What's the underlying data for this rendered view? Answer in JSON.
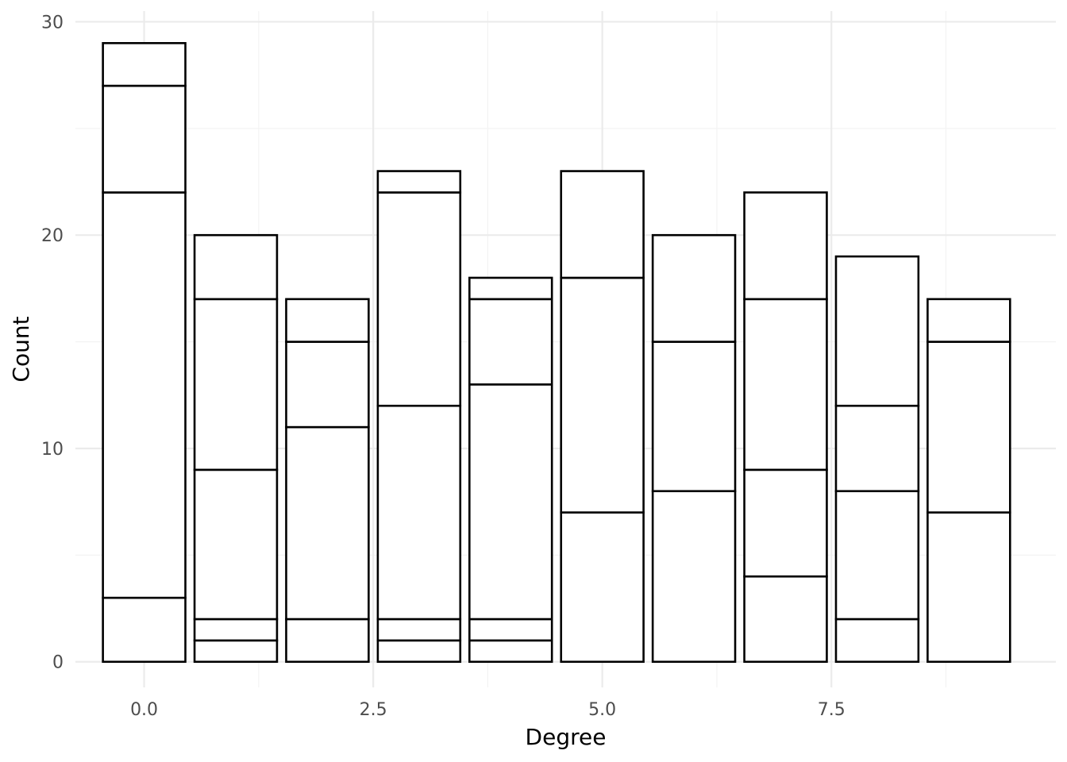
{
  "chart_data": {
    "type": "bar",
    "stacked": true,
    "title": "",
    "xlabel": "Degree",
    "ylabel": "Count",
    "x": [
      0,
      1,
      2,
      3,
      4,
      5,
      6,
      7,
      8,
      9
    ],
    "xlim": [
      -0.75,
      9.95
    ],
    "ylim": [
      -1.2,
      30.5
    ],
    "x_ticks": [
      0,
      2.5,
      5,
      7.5
    ],
    "x_tick_labels": [
      "0.0",
      "2.5",
      "5.0",
      "7.5"
    ],
    "y_ticks": [
      0,
      10,
      20,
      30
    ],
    "y_tick_labels": [
      "0",
      "10",
      "20",
      "30"
    ],
    "grid": true,
    "legend": "none",
    "bar_width": 0.9,
    "fill_color": "#ffffff",
    "outline_color": "#000000",
    "stacks": [
      [
        3,
        19,
        5,
        2
      ],
      [
        1,
        1,
        7,
        8,
        3
      ],
      [
        2,
        9,
        4,
        2
      ],
      [
        1,
        1,
        10,
        10,
        1
      ],
      [
        1,
        1,
        11,
        4,
        1
      ],
      [
        7,
        11,
        5
      ],
      [
        8,
        7,
        5
      ],
      [
        4,
        5,
        8,
        5
      ],
      [
        2,
        6,
        4,
        7
      ],
      [
        7,
        8,
        2
      ]
    ],
    "totals": [
      29,
      20,
      17,
      23,
      18,
      23,
      20,
      22,
      19,
      17
    ]
  }
}
